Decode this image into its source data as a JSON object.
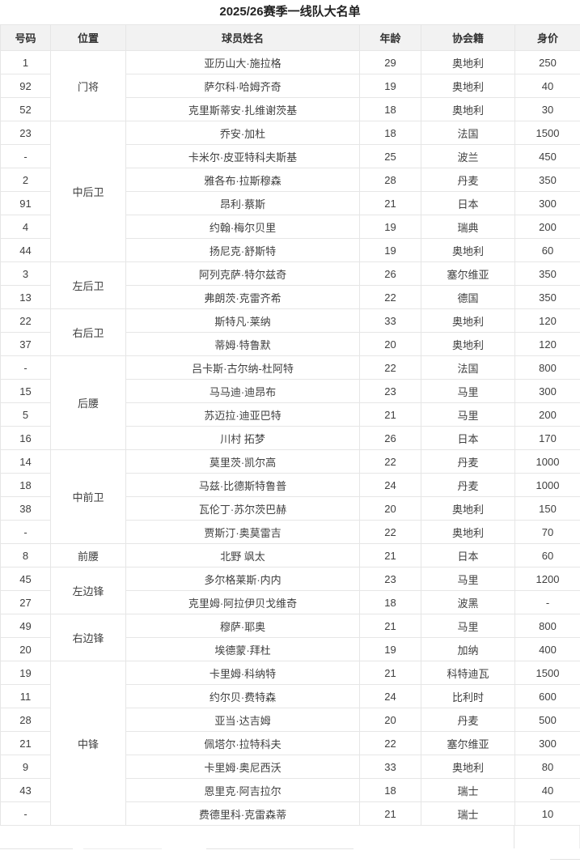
{
  "page": {
    "title": "2025/26赛季一线队大名单"
  },
  "colors": {
    "header_background": "#f2f2f2",
    "row_background": "#ffffff",
    "border": "#e6e6e6",
    "cell_text": "#404040",
    "title_text": "#222222"
  },
  "table": {
    "headers": [
      "号码",
      "位置",
      "球员姓名",
      "年龄",
      "协会籍",
      "身价"
    ],
    "groups": [
      {
        "position": "门将",
        "players": [
          {
            "number": "1",
            "name": "亚历山大·施拉格",
            "age": "29",
            "nation": "奥地利",
            "value": "250"
          },
          {
            "number": "92",
            "name": "萨尔科·哈姆齐奇",
            "age": "19",
            "nation": "奥地利",
            "value": "40"
          },
          {
            "number": "52",
            "name": "克里斯蒂安·扎维谢茨基",
            "age": "18",
            "nation": "奥地利",
            "value": "30"
          }
        ]
      },
      {
        "position": "中后卫",
        "players": [
          {
            "number": "23",
            "name": "乔安·加杜",
            "age": "18",
            "nation": "法国",
            "value": "1500"
          },
          {
            "number": "-",
            "name": "卡米尔·皮亚特科夫斯基",
            "age": "25",
            "nation": "波兰",
            "value": "450"
          },
          {
            "number": "2",
            "name": "雅各布·拉斯穆森",
            "age": "28",
            "nation": "丹麦",
            "value": "350"
          },
          {
            "number": "91",
            "name": "昂利·蔡斯",
            "age": "21",
            "nation": "日本",
            "value": "300"
          },
          {
            "number": "4",
            "name": "约翰·梅尔贝里",
            "age": "19",
            "nation": "瑞典",
            "value": "200"
          },
          {
            "number": "44",
            "name": "扬尼克·舒斯特",
            "age": "19",
            "nation": "奥地利",
            "value": "60"
          }
        ]
      },
      {
        "position": "左后卫",
        "players": [
          {
            "number": "3",
            "name": "阿列克萨·特尔兹奇",
            "age": "26",
            "nation": "塞尔维亚",
            "value": "350"
          },
          {
            "number": "13",
            "name": "弗朗茨·克雷齐希",
            "age": "22",
            "nation": "德国",
            "value": "350"
          }
        ]
      },
      {
        "position": "右后卫",
        "players": [
          {
            "number": "22",
            "name": "斯特凡·莱纳",
            "age": "33",
            "nation": "奥地利",
            "value": "120"
          },
          {
            "number": "37",
            "name": "蒂姆·特鲁默",
            "age": "20",
            "nation": "奥地利",
            "value": "120"
          }
        ]
      },
      {
        "position": "后腰",
        "players": [
          {
            "number": "-",
            "name": "吕卡斯·古尔纳-杜阿特",
            "age": "22",
            "nation": "法国",
            "value": "800"
          },
          {
            "number": "15",
            "name": "马马迪·迪昂布",
            "age": "23",
            "nation": "马里",
            "value": "300"
          },
          {
            "number": "5",
            "name": "苏迈拉·迪亚巴特",
            "age": "21",
            "nation": "马里",
            "value": "200"
          },
          {
            "number": "16",
            "name": "川村 拓梦",
            "age": "26",
            "nation": "日本",
            "value": "170"
          }
        ]
      },
      {
        "position": "中前卫",
        "players": [
          {
            "number": "14",
            "name": "莫里茨·凯尔高",
            "age": "22",
            "nation": "丹麦",
            "value": "1000"
          },
          {
            "number": "18",
            "name": "马兹·比德斯特鲁普",
            "age": "24",
            "nation": "丹麦",
            "value": "1000"
          },
          {
            "number": "38",
            "name": "瓦伦丁·苏尔茨巴赫",
            "age": "20",
            "nation": "奥地利",
            "value": "150"
          },
          {
            "number": "-",
            "name": "贾斯汀·奥莫雷吉",
            "age": "22",
            "nation": "奥地利",
            "value": "70"
          }
        ]
      },
      {
        "position": "前腰",
        "players": [
          {
            "number": "8",
            "name": "北野 飒太",
            "age": "21",
            "nation": "日本",
            "value": "60"
          }
        ]
      },
      {
        "position": "左边锋",
        "players": [
          {
            "number": "45",
            "name": "多尔格莱斯·内内",
            "age": "23",
            "nation": "马里",
            "value": "1200"
          },
          {
            "number": "27",
            "name": "克里姆·阿拉伊贝戈维奇",
            "age": "18",
            "nation": "波黑",
            "value": "-"
          }
        ]
      },
      {
        "position": "右边锋",
        "players": [
          {
            "number": "49",
            "name": "穆萨·耶奥",
            "age": "21",
            "nation": "马里",
            "value": "800"
          },
          {
            "number": "20",
            "name": "埃德蒙·拜杜",
            "age": "19",
            "nation": "加纳",
            "value": "400"
          }
        ]
      },
      {
        "position": "中锋",
        "players": [
          {
            "number": "19",
            "name": "卡里姆·科纳特",
            "age": "21",
            "nation": "科特迪瓦",
            "value": "1500"
          },
          {
            "number": "11",
            "name": "约尔贝·费特森",
            "age": "24",
            "nation": "比利时",
            "value": "600"
          },
          {
            "number": "28",
            "name": "亚当·达吉姆",
            "age": "20",
            "nation": "丹麦",
            "value": "500"
          },
          {
            "number": "21",
            "name": "佩塔尔·拉特科夫",
            "age": "22",
            "nation": "塞尔维亚",
            "value": "300"
          },
          {
            "number": "9",
            "name": "卡里姆·奥尼西沃",
            "age": "33",
            "nation": "奥地利",
            "value": "80"
          },
          {
            "number": "43",
            "name": "恩里克·阿吉拉尔",
            "age": "18",
            "nation": "瑞士",
            "value": "40"
          },
          {
            "number": "-",
            "name": "费德里科·克雷森蒂",
            "age": "21",
            "nation": "瑞士",
            "value": "10"
          }
        ]
      }
    ]
  }
}
